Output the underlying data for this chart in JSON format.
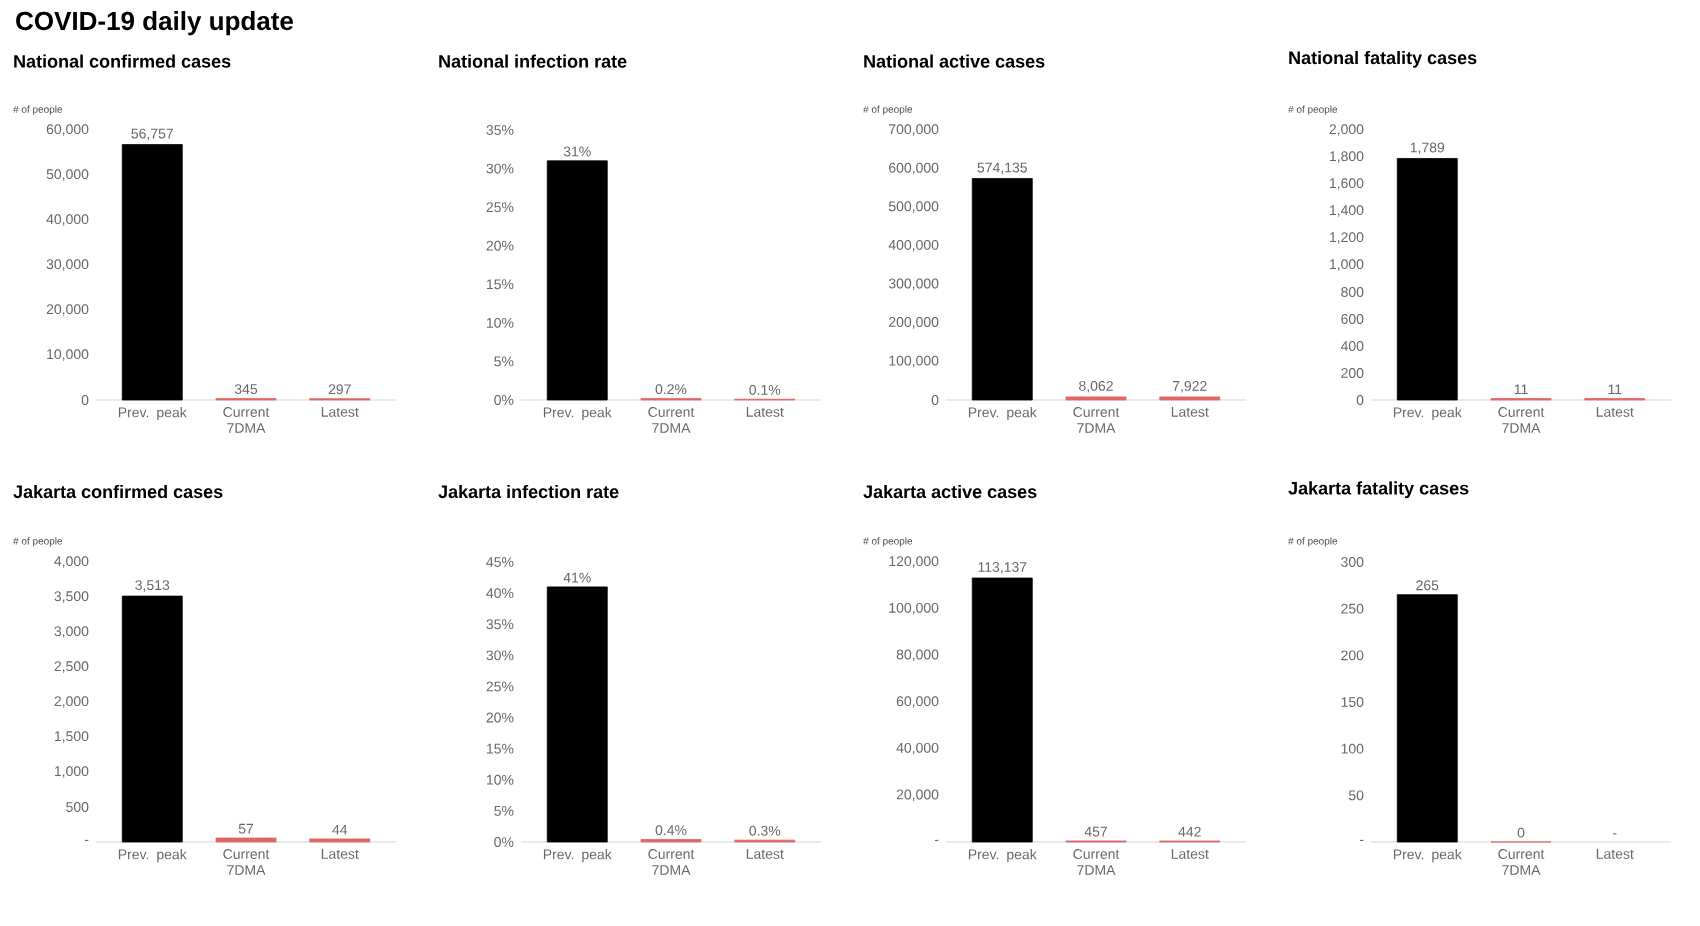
{
  "chart_data": [
    {
      "type": "bar",
      "title": "National confirmed cases",
      "ylabel": "# of people",
      "annotations": [
        "COVID-19 daily update"
      ],
      "categories": [
        "Prev. peak",
        "Current 7DMA",
        "Latest"
      ],
      "values": [
        56757,
        345,
        297
      ],
      "colors": [
        "#000000",
        "#e06666",
        "#e06666"
      ],
      "value_labels": [
        "56,757",
        "345",
        "297"
      ],
      "ylim": [
        0,
        60000
      ],
      "yticks": [
        0,
        {
          "value": 10000,
          "label": "10,000"
        },
        {
          "value": 20000,
          "label": "20,000"
        },
        {
          "value": 30000,
          "label": "30,000"
        },
        {
          "value": 40000,
          "label": "40,000"
        },
        {
          "value": 50000,
          "label": "50,000"
        },
        {
          "value": 60000,
          "label": "60,000"
        }
      ]
    },
    {
      "type": "bar",
      "title": "National infection rate",
      "categories": [
        "Prev. peak",
        "Current 7DMA",
        "Latest"
      ],
      "values": [
        31,
        0.2,
        0.1
      ],
      "colors": [
        "#000000",
        "#e06666",
        "#e06666"
      ],
      "value_labels": [
        "31%",
        "0.2%",
        "0.1%"
      ],
      "ylim": [
        0,
        35
      ],
      "yticks": [
        {
          "value": 0,
          "label": "0%"
        },
        {
          "value": 5,
          "label": "5%"
        },
        {
          "value": 10,
          "label": "10%"
        },
        {
          "value": 15,
          "label": "15%"
        },
        {
          "value": 20,
          "label": "20%"
        },
        {
          "value": 25,
          "label": "25%"
        },
        {
          "value": 30,
          "label": "30%"
        },
        {
          "value": 35,
          "label": "35%"
        }
      ]
    },
    {
      "type": "bar",
      "title": "National active cases",
      "ylabel": "# of people",
      "categories": [
        "Prev. peak",
        "Current 7DMA",
        "Latest"
      ],
      "values": [
        574135,
        8062,
        7922
      ],
      "colors": [
        "#000000",
        "#e06666",
        "#e06666"
      ],
      "value_labels": [
        "574,135",
        "8,062",
        "7,922"
      ],
      "ylim": [
        0,
        700000
      ],
      "yticks": [
        0,
        {
          "value": 100000,
          "label": "100,000"
        },
        {
          "value": 200000,
          "label": "200,000"
        },
        {
          "value": 300000,
          "label": "300,000"
        },
        {
          "value": 400000,
          "label": "400,000"
        },
        {
          "value": 500000,
          "label": "500,000"
        },
        {
          "value": 600000,
          "label": "600,000"
        },
        {
          "value": 700000,
          "label": "700,000"
        }
      ]
    },
    {
      "type": "bar",
      "title": "National fatality cases",
      "ylabel": "# of people",
      "categories": [
        "Prev. peak",
        "Current 7DMA",
        "Latest"
      ],
      "values": [
        1789,
        11,
        11
      ],
      "colors": [
        "#000000",
        "#e06666",
        "#e06666"
      ],
      "value_labels": [
        "1,789",
        "11",
        "11"
      ],
      "ylim": [
        0,
        2000
      ],
      "yticks": [
        0,
        200,
        400,
        600,
        800,
        {
          "value": 1000,
          "label": "1,000"
        },
        {
          "value": 1200,
          "label": "1,200"
        },
        {
          "value": 1400,
          "label": "1,400"
        },
        {
          "value": 1600,
          "label": "1,600"
        },
        {
          "value": 1800,
          "label": "1,800"
        },
        {
          "value": 2000,
          "label": "2,000"
        }
      ]
    },
    {
      "type": "bar",
      "title": "Jakarta confirmed cases",
      "ylabel": "# of people",
      "categories": [
        "Prev. peak",
        "Current 7DMA",
        "Latest"
      ],
      "values": [
        3513,
        57,
        44
      ],
      "colors": [
        "#000000",
        "#e06666",
        "#e06666"
      ],
      "value_labels": [
        "3,513",
        "57",
        "44"
      ],
      "ylim": [
        0,
        4000
      ],
      "yticks": [
        {
          "value": 0,
          "label": "-"
        },
        500,
        {
          "value": 1000,
          "label": "1,000"
        },
        {
          "value": 1500,
          "label": "1,500"
        },
        {
          "value": 2000,
          "label": "2,000"
        },
        {
          "value": 2500,
          "label": "2,500"
        },
        {
          "value": 3000,
          "label": "3,000"
        },
        {
          "value": 3500,
          "label": "3,500"
        },
        {
          "value": 4000,
          "label": "4,000"
        }
      ]
    },
    {
      "type": "bar",
      "title": "Jakarta infection rate",
      "categories": [
        "Prev. peak",
        "Current 7DMA",
        "Latest"
      ],
      "values": [
        41,
        0.4,
        0.3
      ],
      "colors": [
        "#000000",
        "#e06666",
        "#e06666"
      ],
      "value_labels": [
        "41%",
        "0.4%",
        "0.3%"
      ],
      "ylim": [
        0,
        45
      ],
      "yticks": [
        {
          "value": 0,
          "label": "0%"
        },
        {
          "value": 5,
          "label": "5%"
        },
        {
          "value": 10,
          "label": "10%"
        },
        {
          "value": 15,
          "label": "15%"
        },
        {
          "value": 20,
          "label": "20%"
        },
        {
          "value": 25,
          "label": "25%"
        },
        {
          "value": 30,
          "label": "30%"
        },
        {
          "value": 35,
          "label": "35%"
        },
        {
          "value": 40,
          "label": "40%"
        },
        {
          "value": 45,
          "label": "45%"
        }
      ]
    },
    {
      "type": "bar",
      "title": "Jakarta active cases",
      "ylabel": "# of people",
      "categories": [
        "Prev. peak",
        "Current 7DMA",
        "Latest"
      ],
      "values": [
        113137,
        457,
        442
      ],
      "colors": [
        "#000000",
        "#e06666",
        "#e06666"
      ],
      "value_labels": [
        "113,137",
        "457",
        "442"
      ],
      "ylim": [
        0,
        120000
      ],
      "yticks": [
        {
          "value": 0,
          "label": "-"
        },
        {
          "value": 20000,
          "label": "20,000"
        },
        {
          "value": 40000,
          "label": "40,000"
        },
        {
          "value": 60000,
          "label": "60,000"
        },
        {
          "value": 80000,
          "label": "80,000"
        },
        {
          "value": 100000,
          "label": "100,000"
        },
        {
          "value": 120000,
          "label": "120,000"
        }
      ]
    },
    {
      "type": "bar",
      "title": "Jakarta fatality cases",
      "ylabel": "# of people",
      "categories": [
        "Prev. peak",
        "Current 7DMA",
        "Latest"
      ],
      "values": [
        265,
        0,
        null
      ],
      "colors": [
        "#000000",
        "#e06666",
        "#e06666"
      ],
      "value_labels": [
        "265",
        "0",
        "-"
      ],
      "ylim": [
        0,
        300
      ],
      "yticks": [
        {
          "value": 0,
          "label": "-"
        },
        50,
        100,
        150,
        200,
        250,
        300
      ]
    }
  ]
}
